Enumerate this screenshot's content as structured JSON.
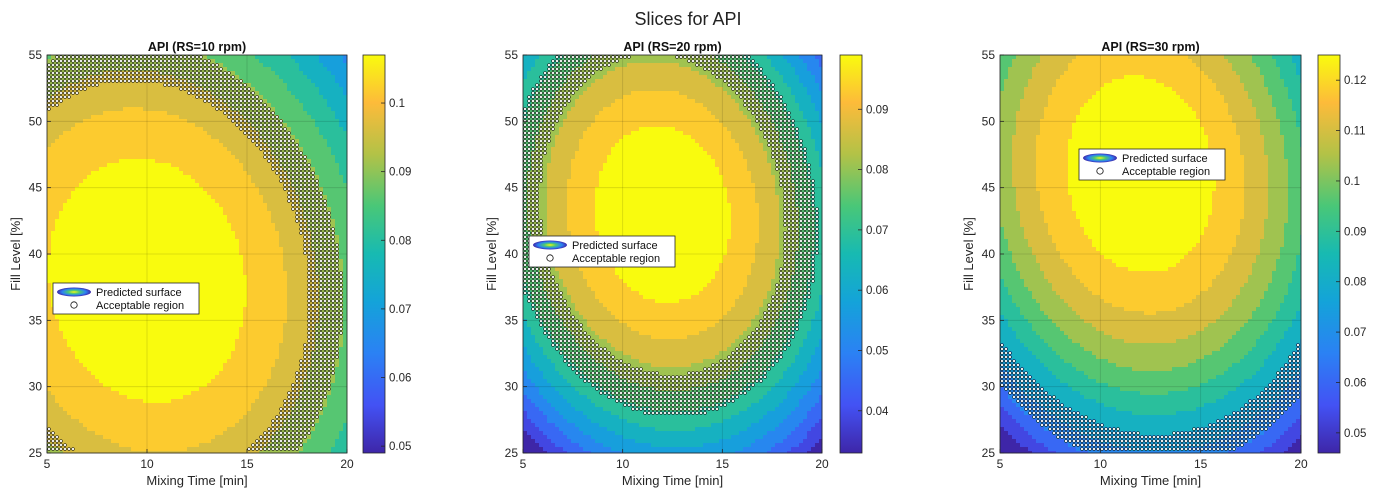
{
  "figure": {
    "title": "Slices for API"
  },
  "chart_data": [
    {
      "type": "heatmap",
      "title": "API (RS=10 rpm)",
      "xlabel": "Mixing Time [min]",
      "ylabel": "Fill Level [%]",
      "xlim": [
        5,
        20
      ],
      "ylim": [
        25,
        55
      ],
      "xticks": [
        5,
        10,
        15,
        20
      ],
      "yticks": [
        25,
        30,
        35,
        40,
        45,
        50,
        55
      ],
      "colorbar": {
        "range": [
          0.049,
          0.107
        ],
        "ticks": [
          "0.05",
          "0.06",
          "0.07",
          "0.08",
          "0.09",
          "0.1"
        ]
      },
      "surface": {
        "center": [
          10,
          38
        ],
        "peak": 0.107,
        "fx": 0.0002,
        "fy": 5.8e-05,
        "fxy": 2e-05
      },
      "acceptable_band": [
        0.088,
        0.094
      ],
      "legend": {
        "entries": [
          "Predicted surface",
          "Acceptable region"
        ],
        "placement": "middle-left"
      }
    },
    {
      "type": "heatmap",
      "title": "API (RS=20 rpm)",
      "xlabel": "Mixing Time [min]",
      "ylabel": "Fill Level [%]",
      "xlim": [
        5,
        20
      ],
      "ylim": [
        25,
        55
      ],
      "xticks": [
        5,
        10,
        15,
        20
      ],
      "yticks": [
        25,
        30,
        35,
        40,
        45,
        50,
        55
      ],
      "colorbar": {
        "range": [
          0.033,
          0.099
        ],
        "ticks": [
          "0.04",
          "0.05",
          "0.06",
          "0.07",
          "0.08",
          "0.09"
        ]
      },
      "surface": {
        "center": [
          12,
          43
        ],
        "peak": 0.099,
        "fx": 0.00048,
        "fy": 0.000125,
        "fxy": 4e-05
      },
      "acceptable_band": [
        0.07,
        0.081
      ],
      "legend": {
        "entries": [
          "Predicted surface",
          "Acceptable region"
        ],
        "placement": "middle-left"
      }
    },
    {
      "type": "heatmap",
      "title": "API (RS=30 rpm)",
      "xlabel": "Mixing Time [min]",
      "ylabel": "Fill Level [%]",
      "xlim": [
        5,
        20
      ],
      "ylim": [
        25,
        55
      ],
      "xticks": [
        5,
        10,
        15,
        20
      ],
      "yticks": [
        25,
        30,
        35,
        40,
        45,
        50,
        55
      ],
      "colorbar": {
        "range": [
          0.046,
          0.125
        ],
        "ticks": [
          "0.05",
          "0.06",
          "0.07",
          "0.08",
          "0.09",
          "0.1",
          "0.11",
          "0.12"
        ]
      },
      "surface": {
        "center": [
          12,
          46
        ],
        "peak": 0.125,
        "fx": 0.00049,
        "fy": 0.000121,
        "fxy": 4e-05
      },
      "acceptable_band": [
        0.066,
        0.079
      ],
      "legend": {
        "entries": [
          "Predicted surface",
          "Acceptable region"
        ],
        "placement": "upper-center"
      }
    }
  ]
}
